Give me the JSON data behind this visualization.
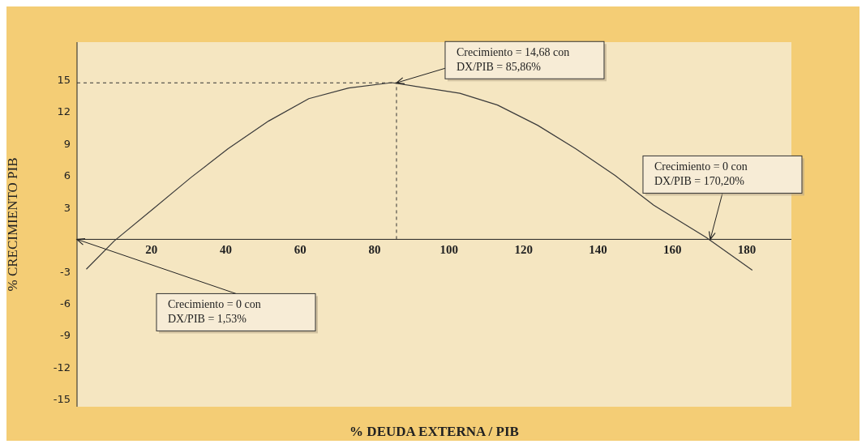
{
  "chart_data": {
    "type": "line",
    "xlabel": "% DEUDA EXTERNA / PIB",
    "ylabel": "% CRECIMIENTO PIB",
    "x": [
      2.5,
      10,
      20.6,
      30.6,
      40.6,
      51.5,
      62.3,
      73,
      84.6,
      102.9,
      113,
      123.8,
      134,
      144.6,
      155,
      169,
      181.5
    ],
    "series": [
      {
        "color": "#3a3a3a",
        "values": [
          -2.8,
          -0.15,
          2.9,
          5.8,
          8.5,
          11.1,
          13.2,
          14.2,
          14.7,
          13.7,
          12.6,
          10.7,
          8.5,
          6.0,
          3.2,
          0.2,
          -2.9
        ]
      }
    ],
    "xlim": [
      0,
      192
    ],
    "xticks": [
      20,
      40,
      60,
      80,
      100,
      120,
      140,
      160,
      180
    ],
    "ylim": [
      -15.7,
      18.5
    ],
    "yticks": [
      -15,
      -12,
      -9,
      -6,
      -3,
      3,
      6,
      9,
      12,
      15
    ],
    "grid": false,
    "marker": "none",
    "line_style": "solid",
    "ref_lines": [
      {
        "axis": "x",
        "value": 85.86,
        "line_style": "dashed",
        "color": "#333333"
      },
      {
        "axis": "y",
        "value": 14.68,
        "line_style": "dashed",
        "color": "#333333"
      }
    ],
    "annotations": [
      "Crecimiento = 0 con\nDX/PIB = 1,53%",
      {
        "text": "Crecimiento = 14,68 con\nDX/PIB = 85,86%",
        "x": 85.86,
        "y": 14.68
      },
      {
        "text": "Crecimiento = 0 con\nDX/PIB = 170,20%",
        "x": 170.2,
        "y": 0
      }
    ]
  }
}
